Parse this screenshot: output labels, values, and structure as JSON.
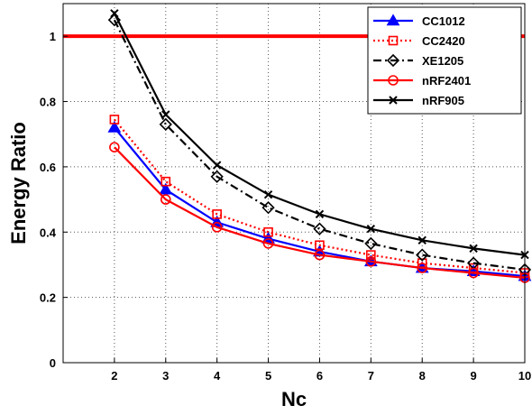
{
  "chart_data": {
    "type": "line",
    "xlabel": "Nc",
    "ylabel": "Energy Ratio",
    "xlim": [
      1,
      10
    ],
    "ylim": [
      0,
      1.1
    ],
    "x_ticks": [
      2,
      3,
      4,
      5,
      6,
      7,
      8,
      9,
      10
    ],
    "y_ticks": [
      0,
      0.2,
      0.4,
      0.6,
      0.8,
      1
    ],
    "grid": true,
    "legend_position": "top-right",
    "reference_line": {
      "y": 1,
      "color": "#ff0000"
    },
    "x": [
      2,
      3,
      4,
      5,
      6,
      7,
      8,
      9,
      10
    ],
    "series": [
      {
        "name": "CC1012",
        "color": "#0000ff",
        "dash": "solid",
        "marker": "triangle",
        "values": [
          0.72,
          0.53,
          0.43,
          0.38,
          0.34,
          0.31,
          0.29,
          0.28,
          0.265
        ]
      },
      {
        "name": "CC2420",
        "color": "#ff0000",
        "dash": "dotted",
        "marker": "square",
        "values": [
          0.745,
          0.555,
          0.455,
          0.4,
          0.36,
          0.33,
          0.305,
          0.29,
          0.275
        ]
      },
      {
        "name": "XE1205",
        "color": "#000000",
        "dash": "dashdot",
        "marker": "diamond",
        "values": [
          1.05,
          0.73,
          0.57,
          0.475,
          0.41,
          0.365,
          0.33,
          0.305,
          0.285
        ]
      },
      {
        "name": "nRF2401",
        "color": "#ff0000",
        "dash": "solid",
        "marker": "circle",
        "values": [
          0.66,
          0.5,
          0.415,
          0.365,
          0.33,
          0.31,
          0.29,
          0.275,
          0.26
        ]
      },
      {
        "name": "nRF905",
        "color": "#000000",
        "dash": "solid",
        "marker": "x",
        "values": [
          1.07,
          0.76,
          0.605,
          0.515,
          0.455,
          0.41,
          0.375,
          0.35,
          0.33
        ]
      }
    ]
  }
}
